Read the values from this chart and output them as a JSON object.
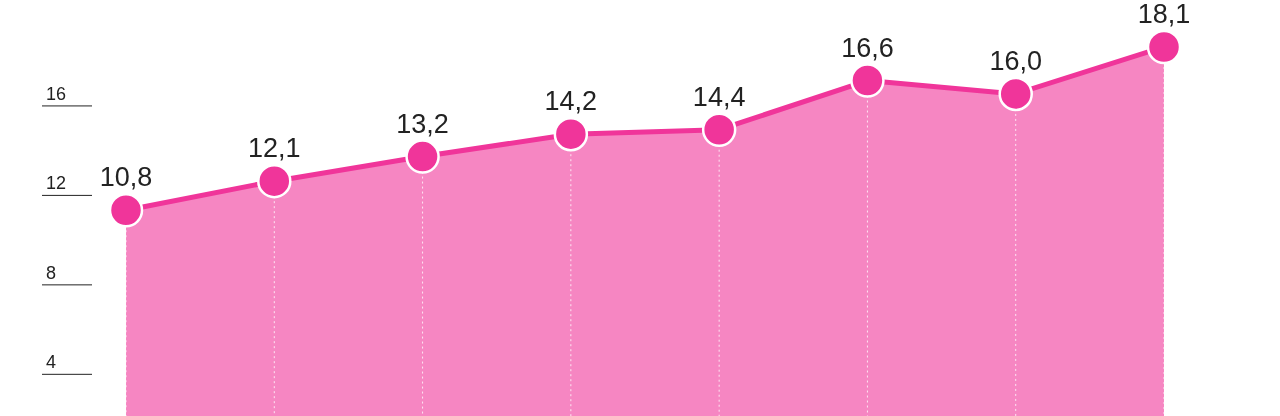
{
  "chart_data": {
    "type": "area",
    "categories": [
      null,
      null,
      null,
      null,
      null,
      null,
      null,
      null
    ],
    "values": [
      10.8,
      12.1,
      13.2,
      14.2,
      14.4,
      16.6,
      16.0,
      18.1
    ],
    "value_labels": [
      "10,8",
      "12,1",
      "13,2",
      "14,2",
      "14,4",
      "16,6",
      "16,0",
      "18,1"
    ],
    "color": "#f0359a",
    "marker": "circle",
    "grid": "x",
    "ylim": [
      1.6,
      20.2
    ],
    "yticks": [
      4,
      8,
      12,
      16
    ],
    "tick_labels": "y"
  }
}
